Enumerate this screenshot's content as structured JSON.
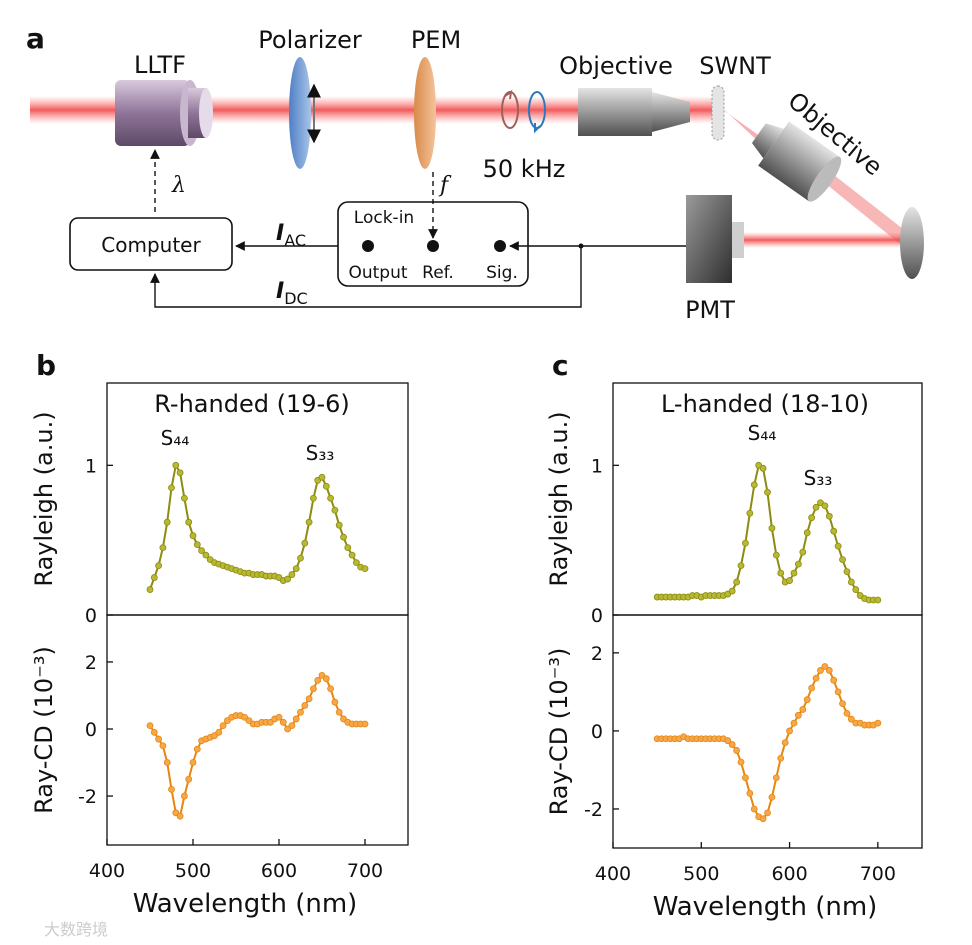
{
  "diagram": {
    "panel": "a",
    "lltf": "LLTF",
    "polarizer": "Polarizer",
    "pem": "PEM",
    "objective1": "Objective",
    "swnt": "SWNT",
    "objective2": "Objective",
    "modulation": "50 kHz",
    "lambda": "λ",
    "freq": "f",
    "computer": "Computer",
    "lockin": "Lock-in",
    "output": "Output",
    "ref": "Ref.",
    "sig": "Sig.",
    "i_ac": {
      "symbol": "I",
      "subscript": "AC"
    },
    "i_dc": {
      "symbol": "I",
      "subscript": "DC"
    },
    "pmt": "PMT",
    "watermark": "大数跨境"
  },
  "chart_data": [
    {
      "type": "line",
      "panel": "b",
      "title": "R-handed (19-6)",
      "ylabel": "Rayleigh (a.u.)",
      "annotations": [
        "S₄₄",
        "S₃₃"
      ],
      "color": "#8c8c10",
      "marker_color": "#b8b832",
      "x": [
        450,
        455,
        460,
        465,
        470,
        475,
        480,
        485,
        490,
        495,
        500,
        505,
        510,
        515,
        520,
        525,
        530,
        535,
        540,
        545,
        550,
        555,
        560,
        565,
        570,
        575,
        580,
        585,
        590,
        595,
        600,
        605,
        610,
        615,
        620,
        625,
        630,
        635,
        640,
        645,
        650,
        655,
        660,
        665,
        670,
        675,
        680,
        685,
        690,
        695,
        700
      ],
      "values": [
        0.17,
        0.25,
        0.33,
        0.45,
        0.62,
        0.85,
        1.0,
        0.95,
        0.78,
        0.62,
        0.53,
        0.47,
        0.43,
        0.4,
        0.37,
        0.35,
        0.34,
        0.33,
        0.32,
        0.31,
        0.3,
        0.29,
        0.28,
        0.28,
        0.27,
        0.27,
        0.27,
        0.26,
        0.26,
        0.26,
        0.25,
        0.23,
        0.24,
        0.27,
        0.31,
        0.38,
        0.48,
        0.62,
        0.78,
        0.9,
        0.92,
        0.86,
        0.78,
        0.7,
        0.6,
        0.52,
        0.45,
        0.4,
        0.35,
        0.32,
        0.31
      ],
      "xlim": [
        400,
        750
      ],
      "ylim": [
        0,
        1.55
      ],
      "yticks": [
        0,
        1
      ]
    },
    {
      "type": "line",
      "ylabel": "Ray-CD (10⁻³)",
      "xlabel": "Wavelength (nm)",
      "color": "#e8860e",
      "marker_color": "#f5a84a",
      "x": [
        450,
        455,
        460,
        465,
        470,
        475,
        480,
        485,
        490,
        495,
        500,
        505,
        510,
        515,
        520,
        525,
        530,
        535,
        540,
        545,
        550,
        555,
        560,
        565,
        570,
        575,
        580,
        585,
        590,
        595,
        600,
        605,
        610,
        615,
        620,
        625,
        630,
        635,
        640,
        645,
        650,
        655,
        660,
        665,
        670,
        675,
        680,
        685,
        690,
        695,
        700
      ],
      "values": [
        0.1,
        -0.1,
        -0.3,
        -0.5,
        -1.0,
        -1.8,
        -2.5,
        -2.6,
        -2.0,
        -1.5,
        -1.0,
        -0.6,
        -0.35,
        -0.3,
        -0.25,
        -0.2,
        -0.1,
        0.1,
        0.25,
        0.35,
        0.4,
        0.4,
        0.35,
        0.25,
        0.15,
        0.15,
        0.2,
        0.2,
        0.2,
        0.3,
        0.35,
        0.2,
        0.0,
        0.1,
        0.3,
        0.5,
        0.7,
        0.9,
        1.2,
        1.45,
        1.6,
        1.5,
        1.2,
        0.8,
        0.5,
        0.3,
        0.2,
        0.15,
        0.15,
        0.15,
        0.15
      ],
      "xlim": [
        400,
        750
      ],
      "ylim": [
        -3.46,
        3.4
      ],
      "xticks": [
        400,
        500,
        600,
        700
      ],
      "yticks": [
        -2,
        0,
        2
      ]
    },
    {
      "type": "line",
      "panel": "c",
      "title": "L-handed  (18-10)",
      "ylabel": "Rayleigh (a.u.)",
      "annotations": [
        "S₄₄",
        "S₃₃"
      ],
      "color": "#8c8c10",
      "marker_color": "#b8b832",
      "x": [
        450,
        455,
        460,
        465,
        470,
        475,
        480,
        485,
        490,
        495,
        500,
        505,
        510,
        515,
        520,
        525,
        530,
        535,
        540,
        545,
        550,
        555,
        560,
        565,
        570,
        575,
        580,
        585,
        590,
        595,
        600,
        605,
        610,
        615,
        620,
        625,
        630,
        635,
        640,
        645,
        650,
        655,
        660,
        665,
        670,
        675,
        680,
        685,
        690,
        695,
        700
      ],
      "values": [
        0.12,
        0.12,
        0.12,
        0.12,
        0.12,
        0.12,
        0.12,
        0.12,
        0.13,
        0.13,
        0.12,
        0.13,
        0.13,
        0.13,
        0.13,
        0.13,
        0.14,
        0.16,
        0.22,
        0.33,
        0.48,
        0.68,
        0.87,
        1.0,
        0.98,
        0.82,
        0.58,
        0.4,
        0.28,
        0.22,
        0.23,
        0.28,
        0.34,
        0.42,
        0.55,
        0.65,
        0.72,
        0.75,
        0.73,
        0.66,
        0.56,
        0.46,
        0.37,
        0.29,
        0.22,
        0.17,
        0.13,
        0.11,
        0.1,
        0.1,
        0.1
      ],
      "xlim": [
        400,
        750
      ],
      "ylim": [
        0,
        1.55
      ],
      "yticks": [
        0,
        1
      ]
    },
    {
      "type": "line",
      "ylabel": "Ray-CD (10⁻³)",
      "xlabel": "Wavelength (nm)",
      "color": "#e8860e",
      "marker_color": "#f5a84a",
      "x": [
        450,
        455,
        460,
        465,
        470,
        475,
        480,
        485,
        490,
        495,
        500,
        505,
        510,
        515,
        520,
        525,
        530,
        535,
        540,
        545,
        550,
        555,
        560,
        565,
        570,
        575,
        580,
        585,
        590,
        595,
        600,
        605,
        610,
        615,
        620,
        625,
        630,
        635,
        640,
        645,
        650,
        655,
        660,
        665,
        670,
        675,
        680,
        685,
        690,
        695,
        700
      ],
      "values": [
        -0.2,
        -0.2,
        -0.2,
        -0.2,
        -0.2,
        -0.2,
        -0.15,
        -0.2,
        -0.2,
        -0.2,
        -0.2,
        -0.2,
        -0.2,
        -0.2,
        -0.2,
        -0.2,
        -0.25,
        -0.35,
        -0.5,
        -0.8,
        -1.2,
        -1.6,
        -2.0,
        -2.2,
        -2.25,
        -2.1,
        -1.7,
        -1.2,
        -0.7,
        -0.3,
        0.0,
        0.2,
        0.4,
        0.55,
        0.8,
        1.1,
        1.35,
        1.55,
        1.65,
        1.55,
        1.3,
        1.0,
        0.7,
        0.45,
        0.3,
        0.2,
        0.2,
        0.15,
        0.15,
        0.15,
        0.2
      ],
      "xlim": [
        400,
        750
      ],
      "ylim": [
        -3.0,
        2.97
      ],
      "xticks": [
        400,
        500,
        600,
        700
      ],
      "yticks": [
        -2,
        0,
        2
      ]
    }
  ]
}
